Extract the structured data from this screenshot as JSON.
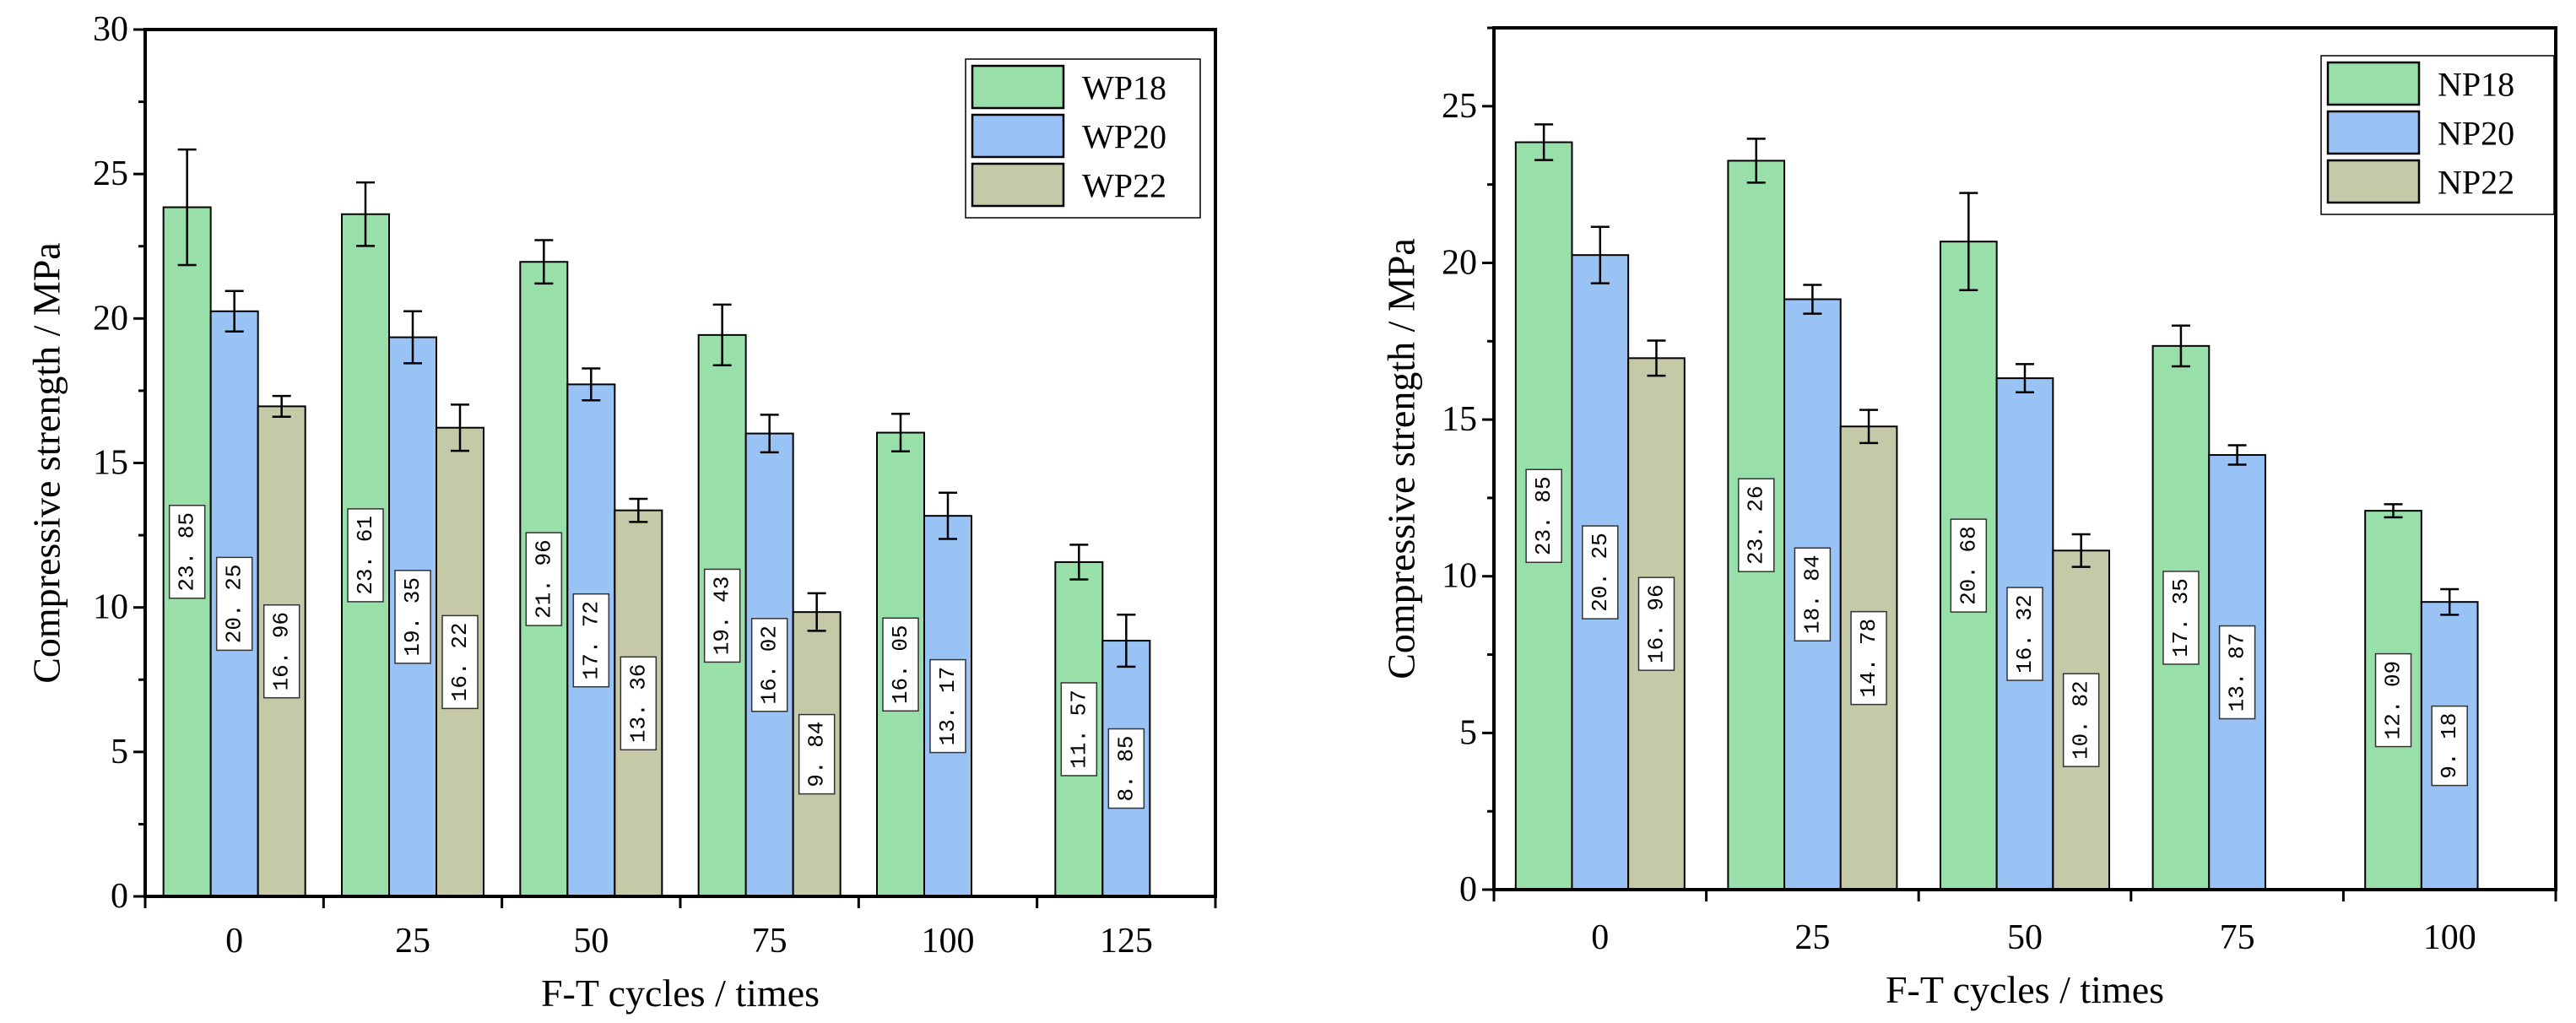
{
  "colors": {
    "s18": "#98dfaa",
    "s20": "#9ac3f5",
    "s22": "#c6c9a8"
  },
  "chart_data": [
    {
      "type": "bar",
      "title": "",
      "xlabel": "F-T cycles / times",
      "ylabel": "Compressive strength / MPa",
      "categories": [
        "0",
        "25",
        "50",
        "75",
        "100",
        "125"
      ],
      "ylim": [
        0,
        30
      ],
      "yticks": [
        0,
        5,
        10,
        15,
        20,
        25,
        30
      ],
      "legend_position": "top-right",
      "series": [
        {
          "name": "WP18",
          "values": [
            23.85,
            23.61,
            21.96,
            19.43,
            16.05,
            11.57
          ],
          "errors": [
            2.0,
            1.1,
            0.75,
            1.05,
            0.65,
            0.6
          ],
          "labels": [
            "23. 85",
            "23. 61",
            "21. 96",
            "19. 43",
            "16. 05",
            "11. 57"
          ]
        },
        {
          "name": "WP20",
          "values": [
            20.25,
            19.35,
            17.72,
            16.02,
            13.17,
            8.85
          ],
          "errors": [
            0.7,
            0.9,
            0.55,
            0.65,
            0.8,
            0.9
          ],
          "labels": [
            "20. 25",
            "19. 35",
            "17. 72",
            "16. 02",
            "13. 17",
            "8. 85"
          ]
        },
        {
          "name": "WP22",
          "values": [
            16.96,
            16.22,
            13.36,
            9.84,
            null,
            null
          ],
          "errors": [
            0.36,
            0.8,
            0.4,
            0.65,
            null,
            null
          ],
          "labels": [
            "16. 96",
            "16. 22",
            "13. 36",
            "9. 84",
            null,
            null
          ]
        }
      ]
    },
    {
      "type": "bar",
      "title": "",
      "xlabel": "F-T cycles / times",
      "ylabel": "Compressive strength / MPa",
      "categories": [
        "0",
        "25",
        "50",
        "75",
        "100"
      ],
      "ylim": [
        0,
        27.5
      ],
      "yticks": [
        0,
        5,
        10,
        15,
        20,
        25
      ],
      "legend_position": "top-right",
      "series": [
        {
          "name": "NP18",
          "values": [
            23.85,
            23.26,
            20.68,
            17.35,
            12.09
          ],
          "errors": [
            0.57,
            0.7,
            1.55,
            0.65,
            0.21
          ],
          "labels": [
            "23. 85",
            "23. 26",
            "20. 68",
            "17. 35",
            "12. 09"
          ]
        },
        {
          "name": "NP20",
          "values": [
            20.25,
            18.84,
            16.32,
            13.87,
            9.18
          ],
          "errors": [
            0.9,
            0.46,
            0.45,
            0.31,
            0.41
          ],
          "labels": [
            "20. 25",
            "18. 84",
            "16. 32",
            "13. 87",
            "9. 18"
          ]
        },
        {
          "name": "NP22",
          "values": [
            16.96,
            14.78,
            10.82,
            null,
            null
          ],
          "errors": [
            0.56,
            0.53,
            0.52,
            null,
            null
          ],
          "labels": [
            "16. 96",
            "14. 78",
            "10. 82",
            null,
            null
          ]
        }
      ]
    }
  ]
}
